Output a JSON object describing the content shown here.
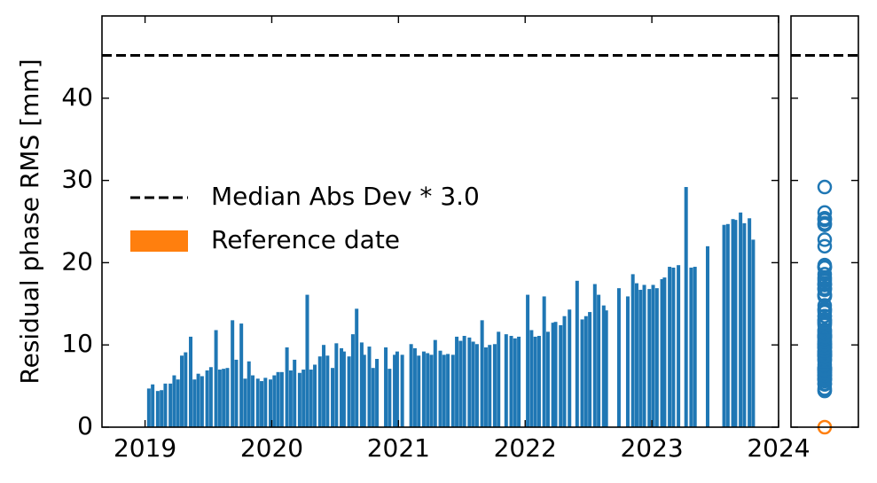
{
  "chart_data": {
    "type": "bar",
    "y_label": "Residual phase RMS [mm]",
    "xlim": [
      2018.66,
      2024.0
    ],
    "xticks": [
      2019,
      2020,
      2021,
      2022,
      2023,
      2024
    ],
    "ylim": [
      0,
      50
    ],
    "yticks": [
      0,
      10,
      20,
      30,
      40
    ],
    "color": "#1f77b4",
    "x": [
      2019.03,
      2019.06,
      2019.1,
      2019.13,
      2019.16,
      2019.2,
      2019.23,
      2019.26,
      2019.29,
      2019.32,
      2019.36,
      2019.39,
      2019.42,
      2019.45,
      2019.49,
      2019.52,
      2019.56,
      2019.59,
      2019.62,
      2019.65,
      2019.69,
      2019.72,
      2019.76,
      2019.79,
      2019.82,
      2019.85,
      2019.89,
      2019.92,
      2019.95,
      2019.99,
      2020.02,
      2020.05,
      2020.08,
      2020.12,
      2020.15,
      2020.18,
      2020.22,
      2020.25,
      2020.28,
      2020.31,
      2020.34,
      2020.38,
      2020.41,
      2020.44,
      2020.48,
      2020.51,
      2020.55,
      2020.57,
      2020.61,
      2020.64,
      2020.67,
      2020.71,
      2020.73,
      2020.77,
      2020.8,
      2020.83,
      2020.9,
      2020.93,
      2020.97,
      2020.99,
      2021.03,
      2021.1,
      2021.13,
      2021.16,
      2021.2,
      2021.23,
      2021.26,
      2021.29,
      2021.33,
      2021.36,
      2021.39,
      2021.43,
      2021.46,
      2021.49,
      2021.52,
      2021.56,
      2021.59,
      2021.62,
      2021.66,
      2021.69,
      2021.72,
      2021.76,
      2021.79,
      2021.85,
      2021.89,
      2021.92,
      2021.95,
      2022.02,
      2022.05,
      2022.08,
      2022.11,
      2022.15,
      2022.18,
      2022.22,
      2022.24,
      2022.28,
      2022.31,
      2022.35,
      2022.41,
      2022.45,
      2022.48,
      2022.51,
      2022.55,
      2022.58,
      2022.62,
      2022.64,
      2022.74,
      2022.81,
      2022.85,
      2022.88,
      2022.91,
      2022.94,
      2022.98,
      2023.01,
      2023.04,
      2023.08,
      2023.1,
      2023.14,
      2023.17,
      2023.21,
      2023.27,
      2023.31,
      2023.34,
      2023.44,
      2023.57,
      2023.6,
      2023.64,
      2023.66,
      2023.7,
      2023.73,
      2023.77,
      2023.8
    ],
    "values": [
      4.7,
      5.2,
      4.4,
      4.5,
      5.3,
      5.3,
      6.3,
      5.8,
      8.7,
      9.1,
      11.0,
      5.8,
      6.5,
      6.2,
      6.9,
      7.3,
      11.8,
      7.0,
      7.1,
      7.2,
      13.0,
      8.2,
      12.6,
      5.9,
      8.0,
      6.3,
      5.9,
      5.6,
      6.0,
      5.8,
      6.3,
      6.7,
      6.7,
      9.7,
      6.9,
      8.2,
      6.6,
      7.0,
      16.1,
      7.0,
      7.6,
      8.6,
      10.0,
      8.7,
      7.2,
      10.2,
      9.6,
      9.2,
      8.6,
      11.3,
      14.4,
      10.3,
      8.8,
      9.8,
      7.2,
      8.3,
      9.7,
      7.1,
      8.8,
      9.2,
      8.8,
      10.1,
      9.6,
      8.7,
      9.2,
      9.0,
      8.8,
      10.6,
      9.3,
      8.8,
      8.9,
      8.8,
      11.0,
      10.5,
      11.1,
      10.9,
      10.4,
      10.1,
      13.0,
      9.7,
      10.0,
      10.1,
      11.6,
      11.3,
      11.1,
      10.8,
      11.0,
      16.1,
      11.8,
      11.0,
      11.1,
      15.9,
      11.6,
      12.7,
      12.8,
      12.4,
      13.5,
      14.3,
      17.8,
      13.1,
      13.5,
      14.0,
      17.4,
      16.1,
      14.8,
      14.2,
      16.9,
      15.9,
      18.6,
      17.5,
      16.7,
      17.3,
      16.8,
      17.3,
      16.9,
      18.0,
      18.2,
      19.5,
      19.4,
      19.7,
      29.2,
      19.4,
      19.5,
      22.0,
      24.6,
      24.7,
      25.3,
      25.2,
      26.1,
      24.8,
      25.4,
      22.8
    ],
    "threshold": {
      "name": "Median Abs Dev * 3.0",
      "value": 45.2,
      "color": "#000000"
    },
    "reference": {
      "name": "Reference date",
      "value": 0,
      "color": "#ff7f0e"
    },
    "legend": "center left"
  }
}
